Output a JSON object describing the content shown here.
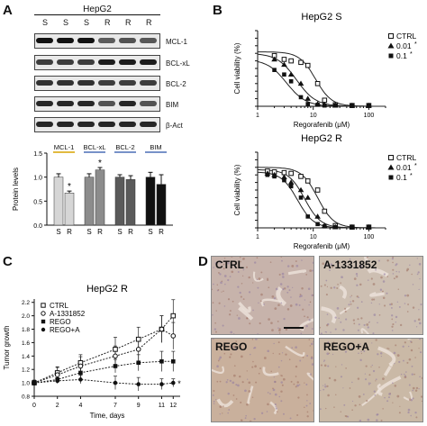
{
  "panels": {
    "a": "A",
    "b": "B",
    "c": "C",
    "d": "D"
  },
  "western": {
    "cell_line": "HepG2",
    "lanes": [
      "S",
      "S",
      "S",
      "R",
      "R",
      "R"
    ],
    "bands": [
      "MCL-1",
      "BCL-xL",
      "BCL-2",
      "BIM",
      "β-Act"
    ],
    "band_intensity": [
      [
        1.0,
        1.0,
        1.0,
        0.65,
        0.7,
        0.68
      ],
      [
        0.8,
        0.8,
        0.8,
        0.95,
        0.95,
        0.95
      ],
      [
        0.85,
        0.85,
        0.85,
        0.8,
        0.8,
        0.8
      ],
      [
        0.9,
        0.9,
        0.9,
        0.7,
        0.9,
        0.7
      ],
      [
        0.9,
        0.9,
        0.9,
        0.9,
        0.9,
        0.9
      ]
    ]
  },
  "chart_data": [
    {
      "type": "bar",
      "ylabel": "Protein levels",
      "ylim": [
        0,
        1.5
      ],
      "yticks": [
        0,
        0.5,
        1.0,
        1.5
      ],
      "groups": [
        "MCL-1",
        "BCL-xL",
        "BCL-2",
        "BIM"
      ],
      "categories": [
        "S",
        "R",
        "S",
        "R",
        "S",
        "R",
        "S",
        "R"
      ],
      "values": [
        1.0,
        0.67,
        1.0,
        1.15,
        1.0,
        0.95,
        1.0,
        0.85
      ],
      "errors": [
        0.07,
        0.04,
        0.07,
        0.05,
        0.05,
        0.08,
        0.1,
        0.2
      ],
      "colors": [
        "#d6d6d6",
        "#d6d6d6",
        "#8c8c8c",
        "#8c8c8c",
        "#5a5a5a",
        "#5a5a5a",
        "#111111",
        "#111111"
      ],
      "group_colors": [
        "#d9a400",
        "#4a6fb5",
        "#4a6fb5",
        "#4a6fb5"
      ],
      "significant": [
        1,
        3
      ],
      "star": "*"
    },
    {
      "type": "scatter",
      "title": "HepG2 S",
      "xlabel": "Regorafenib (μM)",
      "ylabel": "Cell viability (%)",
      "xscale": "log",
      "xlim": [
        1,
        200
      ],
      "ylim": [
        0,
        100
      ],
      "xticks": [
        1,
        10,
        100
      ],
      "yticks": [
        0,
        10,
        20,
        30,
        40,
        50,
        60,
        70,
        80,
        90,
        100
      ],
      "x": [
        2,
        3,
        4,
        6,
        8,
        12,
        16,
        25,
        50,
        100
      ],
      "legend": [
        "CTRL",
        "0.01",
        "0.1"
      ],
      "legend_stars": [
        "",
        "*",
        "*"
      ],
      "series": [
        {
          "name": "CTRL",
          "marker": "square-open",
          "values": [
            67,
            62,
            60,
            58,
            54,
            30,
            8,
            2,
            1,
            1
          ]
        },
        {
          "name": "0.01",
          "marker": "triangle",
          "values": [
            62,
            55,
            42,
            30,
            10,
            3,
            2,
            1,
            1,
            1
          ]
        },
        {
          "name": "0.1",
          "marker": "square-filled",
          "values": [
            48,
            42,
            33,
            12,
            3,
            2,
            1,
            1,
            1,
            1
          ]
        }
      ],
      "fits": [
        {
          "top": 72,
          "ec50": 11,
          "hill": 3
        },
        {
          "top": 70,
          "ec50": 5,
          "hill": 2.5
        },
        {
          "top": 62,
          "ec50": 3.3,
          "hill": 2.5
        }
      ]
    },
    {
      "type": "scatter",
      "title": "HepG2 R",
      "xlabel": "Regorafenib (μM)",
      "ylabel": "Cell viability (%)",
      "xscale": "log",
      "xlim": [
        1,
        200
      ],
      "ylim": [
        0,
        100
      ],
      "xticks": [
        1,
        10,
        100
      ],
      "yticks": [
        0,
        10,
        20,
        30,
        40,
        50,
        60,
        70,
        80,
        90,
        100
      ],
      "x": [
        1.5,
        2,
        3,
        4,
        6,
        8,
        12,
        16,
        25,
        50,
        100
      ],
      "legend": [
        "CTRL",
        "0.01",
        "0.1"
      ],
      "legend_stars": [
        "",
        "*",
        "*"
      ],
      "series": [
        {
          "name": "CTRL",
          "marker": "square-open",
          "values": [
            75,
            74,
            73,
            72,
            68,
            62,
            50,
            22,
            3,
            1,
            1
          ]
        },
        {
          "name": "0.01",
          "marker": "triangle",
          "values": [
            72,
            70,
            67,
            60,
            50,
            40,
            15,
            3,
            1,
            1,
            1
          ]
        },
        {
          "name": "0.1",
          "marker": "square-filled",
          "values": [
            70,
            68,
            63,
            55,
            40,
            15,
            5,
            2,
            1,
            1,
            1
          ]
        }
      ],
      "fits": [
        {
          "top": 80,
          "ec50": 12,
          "hill": 3
        },
        {
          "top": 77,
          "ec50": 7,
          "hill": 3
        },
        {
          "top": 74,
          "ec50": 5.2,
          "hill": 3
        }
      ]
    },
    {
      "type": "line",
      "title": "HepG2 R",
      "xlabel": "Time, days",
      "ylabel": "Tumor growth",
      "xlim": [
        0,
        12.6
      ],
      "ylim": [
        0.8,
        2.25
      ],
      "xticks": [
        0,
        2,
        4,
        7,
        9,
        11,
        12
      ],
      "yticks": [
        0.8,
        1.0,
        1.2,
        1.4,
        1.6,
        1.8,
        2.0,
        2.2
      ],
      "x": [
        0,
        2,
        4,
        7,
        9,
        11,
        12
      ],
      "series": [
        {
          "name": "CTRL",
          "marker": "square-open",
          "values": [
            1.0,
            1.15,
            1.3,
            1.5,
            1.65,
            1.8,
            2.0
          ],
          "errors": [
            0.04,
            0.08,
            0.12,
            0.18,
            0.18,
            0.2,
            0.24
          ]
        },
        {
          "name": "A-1331852",
          "marker": "circle-open",
          "values": [
            1.0,
            1.12,
            1.25,
            1.4,
            1.5,
            1.8,
            1.7
          ],
          "errors": [
            0.04,
            0.12,
            0.14,
            0.15,
            0.18,
            0.2,
            0.2
          ]
        },
        {
          "name": "REGO",
          "marker": "square-filled",
          "values": [
            1.0,
            1.05,
            1.15,
            1.25,
            1.3,
            1.32,
            1.32
          ],
          "errors": [
            0.03,
            0.05,
            0.08,
            0.1,
            0.12,
            0.15,
            0.15
          ]
        },
        {
          "name": "REGO+A",
          "marker": "circle-filled",
          "values": [
            1.0,
            1.03,
            1.05,
            1.0,
            0.98,
            0.98,
            1.0
          ],
          "errors": [
            0.02,
            0.04,
            0.06,
            0.1,
            0.1,
            0.08,
            0.06
          ]
        }
      ],
      "annotation": "*"
    }
  ],
  "ihc": {
    "labels": [
      "CTRL",
      "A-1331852",
      "REGO",
      "REGO+A"
    ],
    "tints": [
      "#c7b3ab",
      "#cdbfb2",
      "#c9b09c",
      "#cab9a6"
    ]
  }
}
